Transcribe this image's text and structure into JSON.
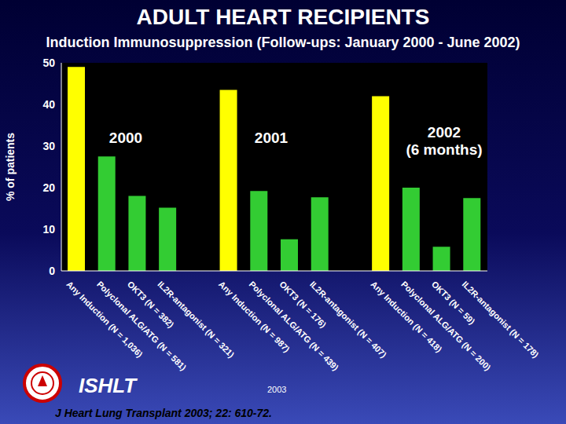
{
  "chart_data": {
    "type": "bar",
    "title": "ADULT HEART RECIPIENTS",
    "subtitle": "Induction Immunosuppression (Follow-ups: January 2000 - June 2002)",
    "y_label": "% of patients",
    "categories": [
      "Any Induction (N = 1,036)",
      "Polyclonal ALG/ATG (N = 581)",
      "OKT3 (N = 382)",
      "IL2R-antagonist (N = 321)",
      null,
      "Any Induction (N = 987)",
      "Polyclonal ALG/ATG (N = 439)",
      "OKT3 (N = 176)",
      "IL2R-antagonist (N = 407)",
      null,
      "Any Induction (N = 418)",
      "Polyclonal ALG/ATG (N = 200)",
      "OKT3 (N = 59)",
      "IL2R-antagonist (N = 178)"
    ],
    "values": [
      49,
      27.5,
      18,
      15.2,
      null,
      43.5,
      19.2,
      7.6,
      17.7,
      null,
      42,
      20,
      5.8,
      17.5
    ],
    "colors": [
      "#ffff00",
      "#33cc33",
      "#33cc33",
      "#33cc33",
      null,
      "#ffff00",
      "#33cc33",
      "#33cc33",
      "#33cc33",
      null,
      "#ffff00",
      "#33cc33",
      "#33cc33",
      "#33cc33"
    ],
    "ylim": [
      0,
      50
    ],
    "yticks": [
      0,
      10,
      20,
      30,
      40,
      50
    ],
    "grid": false,
    "annotations": [
      [
        "2000"
      ],
      [
        "2001"
      ],
      [
        "2002",
        "(6 months)"
      ]
    ]
  },
  "footer": {
    "logo_text": "ISHLT",
    "year": "2003",
    "citation": "J Heart Lung Transplant 2003; 22: 610-72."
  }
}
